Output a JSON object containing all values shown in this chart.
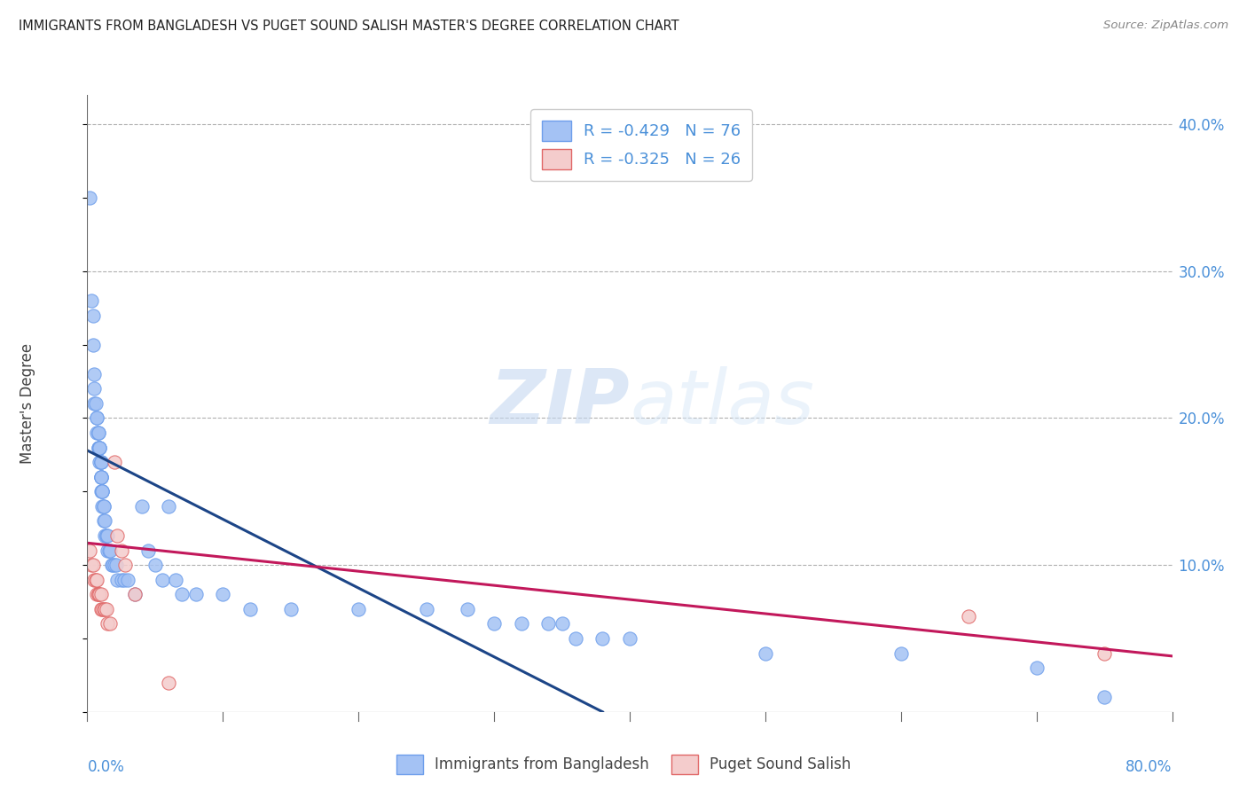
{
  "title": "IMMIGRANTS FROM BANGLADESH VS PUGET SOUND SALISH MASTER'S DEGREE CORRELATION CHART",
  "source": "Source: ZipAtlas.com",
  "ylabel": "Master's Degree",
  "right_yticks": [
    "40.0%",
    "30.0%",
    "20.0%",
    "10.0%"
  ],
  "right_ytick_vals": [
    0.4,
    0.3,
    0.2,
    0.1
  ],
  "legend1_label": "R = -0.429   N = 76",
  "legend2_label": "R = -0.325   N = 26",
  "blue_color": "#a4c2f4",
  "pink_color": "#f4cccc",
  "blue_edge_color": "#6d9eeb",
  "pink_edge_color": "#e06666",
  "blue_line_color": "#1c4587",
  "pink_line_color": "#c2185b",
  "watermark_zip": "ZIP",
  "watermark_atlas": "atlas",
  "blue_scatter_x": [
    0.002,
    0.003,
    0.004,
    0.004,
    0.005,
    0.005,
    0.005,
    0.006,
    0.007,
    0.007,
    0.007,
    0.008,
    0.008,
    0.008,
    0.008,
    0.009,
    0.009,
    0.009,
    0.009,
    0.01,
    0.01,
    0.01,
    0.01,
    0.01,
    0.01,
    0.01,
    0.01,
    0.011,
    0.011,
    0.011,
    0.011,
    0.012,
    0.012,
    0.012,
    0.013,
    0.013,
    0.014,
    0.014,
    0.015,
    0.015,
    0.016,
    0.017,
    0.018,
    0.019,
    0.02,
    0.021,
    0.022,
    0.025,
    0.027,
    0.03,
    0.035,
    0.04,
    0.045,
    0.05,
    0.055,
    0.06,
    0.065,
    0.07,
    0.08,
    0.1,
    0.12,
    0.15,
    0.2,
    0.25,
    0.28,
    0.3,
    0.32,
    0.34,
    0.35,
    0.36,
    0.38,
    0.4,
    0.5,
    0.6,
    0.7,
    0.75
  ],
  "blue_scatter_y": [
    0.35,
    0.28,
    0.27,
    0.25,
    0.23,
    0.22,
    0.21,
    0.21,
    0.2,
    0.2,
    0.19,
    0.19,
    0.19,
    0.18,
    0.18,
    0.18,
    0.18,
    0.18,
    0.17,
    0.17,
    0.17,
    0.17,
    0.16,
    0.16,
    0.16,
    0.16,
    0.15,
    0.15,
    0.15,
    0.15,
    0.14,
    0.14,
    0.14,
    0.13,
    0.13,
    0.12,
    0.12,
    0.12,
    0.12,
    0.11,
    0.11,
    0.11,
    0.1,
    0.1,
    0.1,
    0.1,
    0.09,
    0.09,
    0.09,
    0.09,
    0.08,
    0.14,
    0.11,
    0.1,
    0.09,
    0.14,
    0.09,
    0.08,
    0.08,
    0.08,
    0.07,
    0.07,
    0.07,
    0.07,
    0.07,
    0.06,
    0.06,
    0.06,
    0.06,
    0.05,
    0.05,
    0.05,
    0.04,
    0.04,
    0.03,
    0.01
  ],
  "pink_scatter_x": [
    0.002,
    0.003,
    0.004,
    0.005,
    0.006,
    0.007,
    0.007,
    0.008,
    0.008,
    0.009,
    0.01,
    0.01,
    0.011,
    0.012,
    0.013,
    0.014,
    0.015,
    0.017,
    0.02,
    0.022,
    0.025,
    0.028,
    0.035,
    0.06,
    0.65,
    0.75
  ],
  "pink_scatter_y": [
    0.11,
    0.1,
    0.1,
    0.09,
    0.09,
    0.09,
    0.08,
    0.08,
    0.08,
    0.08,
    0.08,
    0.07,
    0.07,
    0.07,
    0.07,
    0.07,
    0.06,
    0.06,
    0.17,
    0.12,
    0.11,
    0.1,
    0.08,
    0.02,
    0.065,
    0.04
  ],
  "blue_line_x": [
    0.0,
    0.38
  ],
  "blue_line_y": [
    0.178,
    0.0
  ],
  "pink_line_x": [
    0.0,
    0.8
  ],
  "pink_line_y": [
    0.115,
    0.038
  ],
  "xlim": [
    0.0,
    0.8
  ],
  "ylim": [
    0.0,
    0.42
  ],
  "xtick_positions": [
    0.0,
    0.1,
    0.2,
    0.3,
    0.4,
    0.5,
    0.6,
    0.7,
    0.8
  ]
}
